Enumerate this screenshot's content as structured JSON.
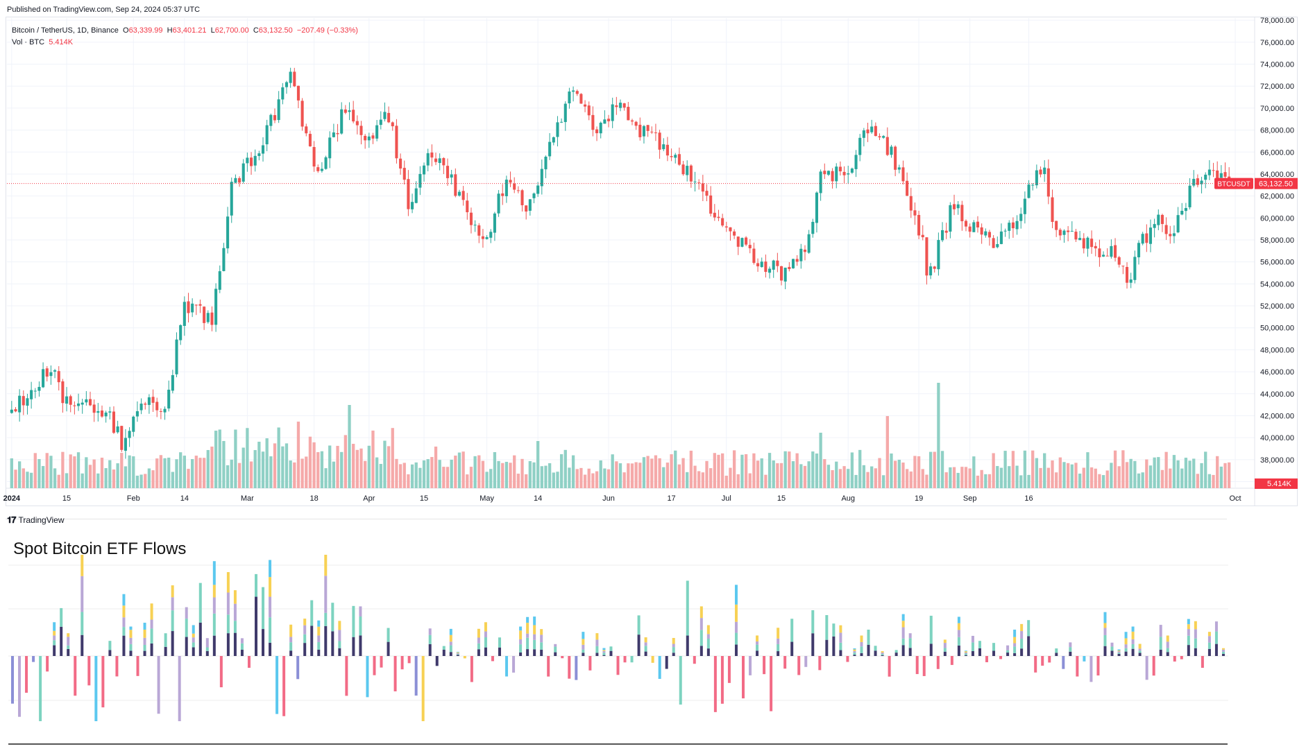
{
  "header": {
    "published": "Published on TradingView.com, Sep 24, 2024 05:37 UTC"
  },
  "legend": {
    "symbol": "Bitcoin / TetherUS, 1D, Binance",
    "o_label": "O",
    "o_value": "63,339.99",
    "h_label": "H",
    "h_value": "63,401.21",
    "l_label": "L",
    "l_value": "62,700.00",
    "c_label": "C",
    "c_value": "63,132.50",
    "change": "−207.49 (−0.33%)",
    "vol_label": "Vol · BTC",
    "vol_value": "5.414K"
  },
  "price_tag": {
    "symbol": "BTCUSDT",
    "value": "63,132.50"
  },
  "vol_tag": "5.414K",
  "footer": {
    "logo_text": "TradingView",
    "etf_title": "Spot Bitcoin ETF Flows"
  },
  "colors": {
    "up": "#26a69a",
    "down": "#ef5350",
    "vol_up": "#8fd0c5",
    "vol_down": "#f5a9a9",
    "etf_out": "#f26b86"
  },
  "chart_data": {
    "type": "candlestick",
    "x_axis_ticks": [
      "2024",
      "15",
      "Feb",
      "14",
      "Mar",
      "18",
      "Apr",
      "15",
      "May",
      "14",
      "Jun",
      "17",
      "Jul",
      "15",
      "Aug",
      "19",
      "Sep",
      "16",
      "Oct"
    ],
    "y_axis_ticks": [
      "78,000.00",
      "76,000.00",
      "74,000.00",
      "72,000.00",
      "70,000.00",
      "68,000.00",
      "66,000.00",
      "64,000.00",
      "62,000.00",
      "60,000.00",
      "58,000.00",
      "56,000.00",
      "54,000.00",
      "52,000.00",
      "50,000.00",
      "48,000.00",
      "46,000.00",
      "44,000.00",
      "42,000.00",
      "40,000.00",
      "38,000.00",
      "36,000.00"
    ],
    "ylim": [
      35400,
      78200
    ],
    "last_close": 63132.5,
    "close_key": [
      [
        0,
        42300
      ],
      [
        10,
        46500
      ],
      [
        14,
        43000
      ],
      [
        24,
        42500
      ],
      [
        28,
        39500
      ],
      [
        34,
        43000
      ],
      [
        39,
        42800
      ],
      [
        44,
        51800
      ],
      [
        51,
        51000
      ],
      [
        56,
        62500
      ],
      [
        64,
        67200
      ],
      [
        71,
        72700
      ],
      [
        78,
        64000
      ],
      [
        85,
        70000
      ],
      [
        90,
        66500
      ],
      [
        96,
        69500
      ],
      [
        101,
        61000
      ],
      [
        106,
        66000
      ],
      [
        110,
        64800
      ],
      [
        120,
        57500
      ],
      [
        126,
        63600
      ],
      [
        131,
        61000
      ],
      [
        137,
        66300
      ],
      [
        142,
        71500
      ],
      [
        149,
        68000
      ],
      [
        155,
        71000
      ],
      [
        159,
        68000
      ],
      [
        165,
        67000
      ],
      [
        171,
        64500
      ],
      [
        178,
        61000
      ],
      [
        184,
        58500
      ],
      [
        190,
        56000
      ],
      [
        196,
        55000
      ],
      [
        203,
        58000
      ],
      [
        206,
        63500
      ],
      [
        211,
        64500
      ],
      [
        213,
        63500
      ],
      [
        217,
        67500
      ],
      [
        221,
        67800
      ],
      [
        226,
        64500
      ],
      [
        232,
        57500
      ],
      [
        233,
        54000
      ],
      [
        240,
        61500
      ],
      [
        244,
        59000
      ],
      [
        250,
        58000
      ],
      [
        256,
        59500
      ],
      [
        259,
        63600
      ],
      [
        263,
        64000
      ],
      [
        266,
        58500
      ],
      [
        272,
        58500
      ],
      [
        276,
        56500
      ],
      [
        281,
        57000
      ],
      [
        284,
        54000
      ],
      [
        287,
        57500
      ],
      [
        292,
        59500
      ],
      [
        296,
        58500
      ],
      [
        300,
        62500
      ],
      [
        305,
        64100
      ],
      [
        310,
        63132
      ]
    ],
    "volume_spikes": [
      [
        86,
        3.0
      ],
      [
        236,
        3.8
      ],
      [
        223,
        2.6
      ],
      [
        73,
        2.4
      ],
      [
        206,
        2.0
      ],
      [
        108,
        1.5
      ],
      [
        123,
        1.3
      ],
      [
        134,
        1.7
      ]
    ],
    "etf_flows": {
      "unit": "daily net flow",
      "note": "inflows above zero (stacked by issuer), outflows below zero"
    }
  }
}
